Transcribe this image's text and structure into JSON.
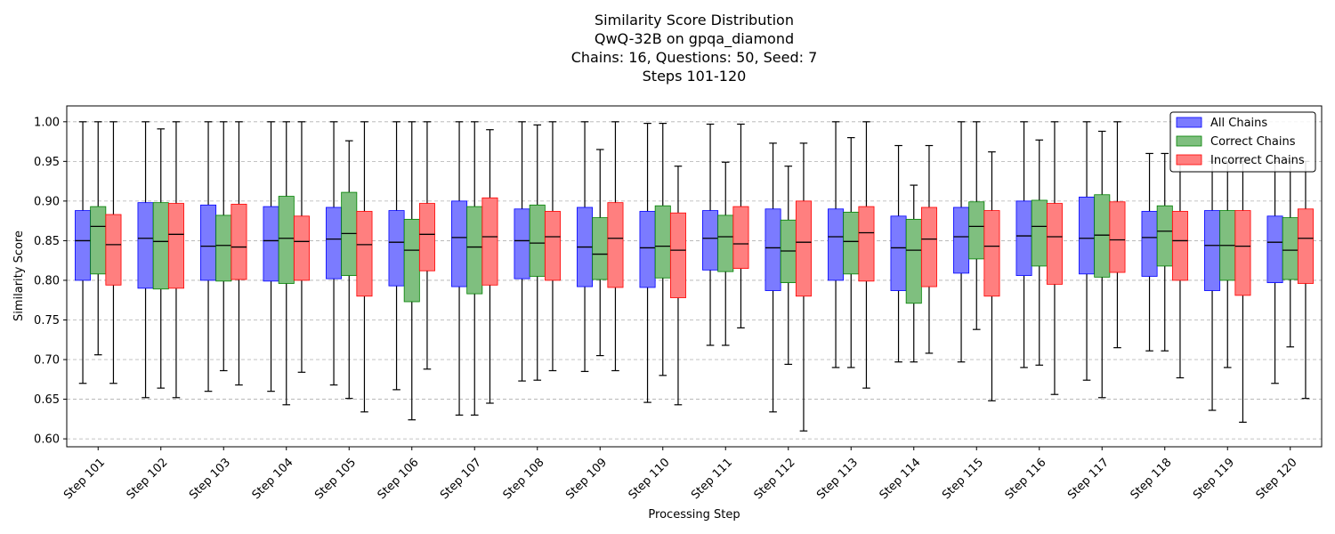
{
  "chart_data": {
    "type": "box",
    "title_lines": [
      "Similarity Score Distribution",
      "QwQ-32B on gpqa_diamond",
      "Chains: 16, Questions: 50, Seed: 7",
      "Steps 101-120"
    ],
    "xlabel": "Processing Step",
    "ylabel": "Similarity Score",
    "ylim": [
      0.59,
      1.02
    ],
    "yticks": [
      "0.60",
      "0.65",
      "0.70",
      "0.75",
      "0.80",
      "0.85",
      "0.90",
      "0.95",
      "1.00"
    ],
    "grid": "horizontal dashed",
    "legend_position": "top-right",
    "categories": [
      "Step 101",
      "Step 102",
      "Step 103",
      "Step 104",
      "Step 105",
      "Step 106",
      "Step 107",
      "Step 108",
      "Step 109",
      "Step 110",
      "Step 111",
      "Step 112",
      "Step 113",
      "Step 114",
      "Step 115",
      "Step 116",
      "Step 117",
      "Step 118",
      "Step 119",
      "Step 120"
    ],
    "series": [
      {
        "name": "All Chains",
        "color": "#7b7bff",
        "edge": "#0000ff",
        "boxes": [
          [
            0.67,
            0.8,
            0.85,
            0.888,
            1.0
          ],
          [
            0.652,
            0.79,
            0.853,
            0.898,
            1.0
          ],
          [
            0.66,
            0.8,
            0.843,
            0.895,
            1.0
          ],
          [
            0.66,
            0.799,
            0.85,
            0.893,
            1.0
          ],
          [
            0.668,
            0.802,
            0.852,
            0.892,
            1.0
          ],
          [
            0.662,
            0.793,
            0.848,
            0.888,
            1.0
          ],
          [
            0.63,
            0.792,
            0.854,
            0.9,
            1.0
          ],
          [
            0.673,
            0.802,
            0.85,
            0.89,
            1.0
          ],
          [
            0.685,
            0.792,
            0.842,
            0.892,
            1.0
          ],
          [
            0.646,
            0.791,
            0.841,
            0.887,
            0.998
          ],
          [
            0.718,
            0.813,
            0.853,
            0.888,
            0.997
          ],
          [
            0.634,
            0.787,
            0.841,
            0.89,
            0.973
          ],
          [
            0.69,
            0.8,
            0.855,
            0.89,
            1.0
          ],
          [
            0.697,
            0.787,
            0.841,
            0.881,
            0.97
          ],
          [
            0.697,
            0.809,
            0.855,
            0.892,
            1.0
          ],
          [
            0.69,
            0.806,
            0.856,
            0.9,
            1.0
          ],
          [
            0.674,
            0.808,
            0.853,
            0.905,
            1.0
          ],
          [
            0.711,
            0.805,
            0.854,
            0.887,
            0.96
          ],
          [
            0.636,
            0.787,
            0.844,
            0.888,
            0.95
          ],
          [
            0.67,
            0.797,
            0.848,
            0.881,
            0.95
          ]
        ]
      },
      {
        "name": "Correct Chains",
        "color": "#7fbf7f",
        "edge": "#008000",
        "boxes": [
          [
            0.706,
            0.808,
            0.868,
            0.893,
            1.0
          ],
          [
            0.664,
            0.789,
            0.849,
            0.898,
            0.991
          ],
          [
            0.686,
            0.799,
            0.844,
            0.882,
            1.0
          ],
          [
            0.643,
            0.796,
            0.853,
            0.906,
            1.0
          ],
          [
            0.651,
            0.806,
            0.859,
            0.911,
            0.976
          ],
          [
            0.624,
            0.773,
            0.838,
            0.877,
            1.0
          ],
          [
            0.63,
            0.783,
            0.842,
            0.893,
            1.0
          ],
          [
            0.674,
            0.805,
            0.847,
            0.895,
            0.996
          ],
          [
            0.705,
            0.801,
            0.833,
            0.879,
            0.965
          ],
          [
            0.68,
            0.803,
            0.843,
            0.894,
            0.998
          ],
          [
            0.718,
            0.811,
            0.855,
            0.882,
            0.949
          ],
          [
            0.694,
            0.797,
            0.837,
            0.876,
            0.944
          ],
          [
            0.69,
            0.808,
            0.849,
            0.886,
            0.98
          ],
          [
            0.697,
            0.771,
            0.838,
            0.877,
            0.92
          ],
          [
            0.738,
            0.827,
            0.868,
            0.899,
            1.0
          ],
          [
            0.693,
            0.818,
            0.868,
            0.901,
            0.977
          ],
          [
            0.652,
            0.804,
            0.857,
            0.908,
            0.988
          ],
          [
            0.711,
            0.818,
            0.862,
            0.894,
            0.96
          ],
          [
            0.69,
            0.8,
            0.844,
            0.888,
            0.95
          ],
          [
            0.716,
            0.801,
            0.838,
            0.879,
            0.95
          ]
        ]
      },
      {
        "name": "Incorrect Chains",
        "color": "#ff7f7f",
        "edge": "#ff0000",
        "boxes": [
          [
            0.67,
            0.794,
            0.845,
            0.883,
            1.0
          ],
          [
            0.652,
            0.79,
            0.858,
            0.897,
            1.0
          ],
          [
            0.668,
            0.801,
            0.842,
            0.896,
            1.0
          ],
          [
            0.684,
            0.8,
            0.849,
            0.881,
            1.0
          ],
          [
            0.634,
            0.78,
            0.845,
            0.887,
            1.0
          ],
          [
            0.688,
            0.812,
            0.858,
            0.897,
            1.0
          ],
          [
            0.645,
            0.794,
            0.855,
            0.904,
            0.99
          ],
          [
            0.686,
            0.8,
            0.855,
            0.887,
            1.0
          ],
          [
            0.686,
            0.791,
            0.853,
            0.898,
            1.0
          ],
          [
            0.643,
            0.778,
            0.838,
            0.885,
            0.944
          ],
          [
            0.74,
            0.815,
            0.846,
            0.893,
            0.997
          ],
          [
            0.61,
            0.78,
            0.848,
            0.9,
            0.973
          ],
          [
            0.664,
            0.799,
            0.86,
            0.893,
            1.0
          ],
          [
            0.708,
            0.792,
            0.852,
            0.892,
            0.97
          ],
          [
            0.648,
            0.78,
            0.843,
            0.888,
            0.962
          ],
          [
            0.656,
            0.795,
            0.855,
            0.897,
            1.0
          ],
          [
            0.715,
            0.81,
            0.851,
            0.899,
            1.0
          ],
          [
            0.677,
            0.8,
            0.85,
            0.887,
            0.955
          ],
          [
            0.621,
            0.781,
            0.843,
            0.888,
            0.95
          ],
          [
            0.651,
            0.796,
            0.853,
            0.89,
            0.95
          ]
        ]
      }
    ]
  }
}
